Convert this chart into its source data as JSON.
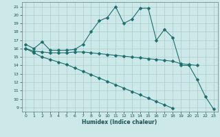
{
  "x": [
    0,
    1,
    2,
    3,
    4,
    5,
    6,
    7,
    8,
    9,
    10,
    11,
    12,
    13,
    14,
    15,
    16,
    17,
    18,
    19,
    20,
    21,
    22,
    23
  ],
  "line1": [
    16.5,
    16.0,
    16.8,
    15.8,
    15.8,
    15.8,
    15.9,
    16.5,
    18.0,
    19.3,
    19.7,
    21.0,
    19.0,
    19.5,
    20.8,
    20.8,
    17.0,
    18.3,
    17.3,
    14.0,
    14.0,
    12.3,
    10.3,
    8.8
  ],
  "line2": [
    16.0,
    15.7,
    15.6,
    15.5,
    15.5,
    15.5,
    15.6,
    15.6,
    15.5,
    15.4,
    15.3,
    15.2,
    15.1,
    15.0,
    14.9,
    14.8,
    14.7,
    14.6,
    14.5,
    14.2,
    14.1,
    14.0,
    null,
    null
  ],
  "line3": [
    16.0,
    15.5,
    15.0,
    14.7,
    14.4,
    14.1,
    13.7,
    13.3,
    12.9,
    12.5,
    12.1,
    11.7,
    11.3,
    10.9,
    10.5,
    10.1,
    9.7,
    9.3,
    8.9,
    null,
    null,
    null,
    null,
    null
  ],
  "xlabel": "Humidex (Indice chaleur)",
  "xlim": [
    -0.5,
    23.5
  ],
  "ylim": [
    8.5,
    21.5
  ],
  "yticks": [
    9,
    10,
    11,
    12,
    13,
    14,
    15,
    16,
    17,
    18,
    19,
    20,
    21
  ],
  "xticks": [
    0,
    1,
    2,
    3,
    4,
    5,
    6,
    7,
    8,
    9,
    10,
    11,
    12,
    13,
    14,
    15,
    16,
    17,
    18,
    19,
    20,
    21,
    22,
    23
  ],
  "bg_color": "#cce8e8",
  "grid_color": "#aacccc",
  "line_color": "#1a6e6e",
  "marker_size": 2.5
}
